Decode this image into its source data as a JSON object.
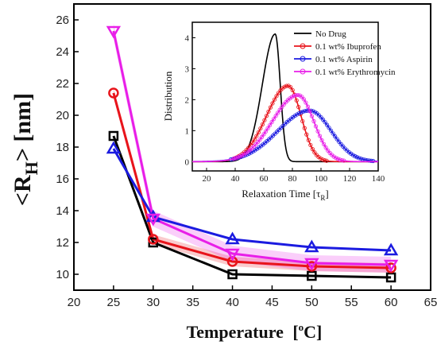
{
  "chart_data": [
    {
      "type": "line",
      "xlabel_main": "Temperature",
      "xlabel_unit_pre": "[",
      "xlabel_unit_sup": "o",
      "xlabel_unit_post": "C]",
      "ylabel_pre": "<R",
      "ylabel_sub": "H",
      "ylabel_post": "> [nm]",
      "xlim": [
        20,
        65
      ],
      "ylim": [
        9,
        27
      ],
      "xticks": [
        20,
        25,
        30,
        35,
        40,
        45,
        50,
        55,
        60,
        65
      ],
      "yticks": [
        10,
        12,
        14,
        16,
        18,
        20,
        22,
        24,
        26
      ],
      "x": [
        25,
        30,
        40,
        50,
        60
      ],
      "series": [
        {
          "color": "#000000",
          "marker": "square",
          "values": [
            18.7,
            12.0,
            10.0,
            9.9,
            9.8
          ],
          "band": 0
        },
        {
          "color": "#e8141b",
          "marker": "circle",
          "values": [
            21.4,
            12.2,
            10.8,
            10.5,
            10.4
          ],
          "band": 0.3
        },
        {
          "color": "#1b1be0",
          "marker": "triangle-up",
          "values": [
            17.9,
            13.6,
            12.2,
            11.7,
            11.5
          ],
          "band": 0
        },
        {
          "color": "#e81ee8",
          "marker": "triangle-down",
          "values": [
            25.3,
            13.5,
            11.3,
            10.7,
            10.6
          ],
          "band": 0.5
        }
      ]
    },
    {
      "type": "line",
      "xlabel_main": "Relaxation Time [",
      "xlabel_sym": "τ",
      "xlabel_sub": "R",
      "xlabel_post": "]",
      "ylabel": "Distribution",
      "xlim": [
        10,
        140
      ],
      "ylim": [
        -0.3,
        4.5
      ],
      "xticks": [
        20,
        40,
        60,
        80,
        100,
        120,
        140
      ],
      "yticks": [
        0,
        1,
        2,
        3,
        4
      ],
      "legend": [
        "No Drug",
        "0.1 wt% Ibuprofen",
        "0.1 wt% Aspirin",
        "0.1 wt% Erythromycin"
      ],
      "series": [
        {
          "name": "No Drug",
          "color": "#000000",
          "peak_x": 68,
          "peak_y": 4.12,
          "sigma_left": 9,
          "sigma_right": 3.5,
          "markers": false
        },
        {
          "name": "0.1 wt% Ibuprofen",
          "color": "#e8141b",
          "peak_x": 77,
          "peak_y": 2.45,
          "sigma_left": 15,
          "sigma_right": 9,
          "markers": true
        },
        {
          "name": "0.1 wt% Aspirin",
          "color": "#1b1be0",
          "peak_x": 92,
          "peak_y": 1.65,
          "sigma_left": 22,
          "sigma_right": 15,
          "markers": true
        },
        {
          "name": "0.1 wt% Erythromycin",
          "color": "#e81ee8",
          "peak_x": 84,
          "peak_y": 2.15,
          "sigma_left": 18,
          "sigma_right": 11,
          "markers": true
        }
      ]
    }
  ]
}
